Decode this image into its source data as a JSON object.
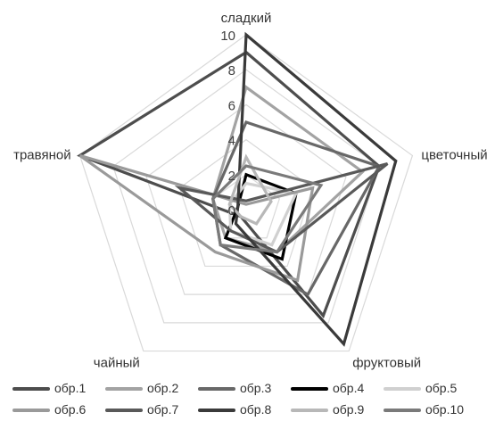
{
  "chart_data": {
    "type": "radar",
    "axes": [
      "сладкий",
      "цветочный",
      "фруктовый",
      "чайный",
      "травяной"
    ],
    "rlim": [
      0,
      10
    ],
    "ticks": [
      "0",
      "2",
      "4",
      "6",
      "8",
      "10"
    ],
    "grid": true,
    "legend_position": "bottom",
    "series": [
      {
        "name": "обр.1",
        "color": "#4d4d4d",
        "values": [
          9,
          8,
          7.5,
          0.5,
          10
        ]
      },
      {
        "name": "обр.2",
        "color": "#a3a3a3",
        "values": [
          7,
          7,
          3,
          2,
          2
        ]
      },
      {
        "name": "обр.3",
        "color": "#686868",
        "values": [
          5,
          8,
          6,
          2.5,
          2
        ]
      },
      {
        "name": "обр.4",
        "color": "#000000",
        "values": [
          2,
          3,
          3.5,
          2,
          0.5
        ]
      },
      {
        "name": "обр.5",
        "color": "#d0d0d0",
        "values": [
          1.5,
          3,
          2.5,
          1.5,
          1
        ]
      },
      {
        "name": "обр.6",
        "color": "#9a9a9a",
        "values": [
          0.3,
          4,
          5,
          3,
          10
        ]
      },
      {
        "name": "обр.7",
        "color": "#595959",
        "values": [
          0.5,
          8.5,
          3,
          1.5,
          4
        ]
      },
      {
        "name": "обр.8",
        "color": "#3a3a3a",
        "values": [
          10,
          9,
          9.5,
          1,
          0.5
        ]
      },
      {
        "name": "обр.9",
        "color": "#b8b8b8",
        "values": [
          3,
          1.5,
          1,
          0.5,
          1
        ]
      },
      {
        "name": "обр.10",
        "color": "#7a7a7a",
        "values": [
          2.5,
          4.5,
          3,
          2.5,
          2
        ]
      }
    ]
  }
}
